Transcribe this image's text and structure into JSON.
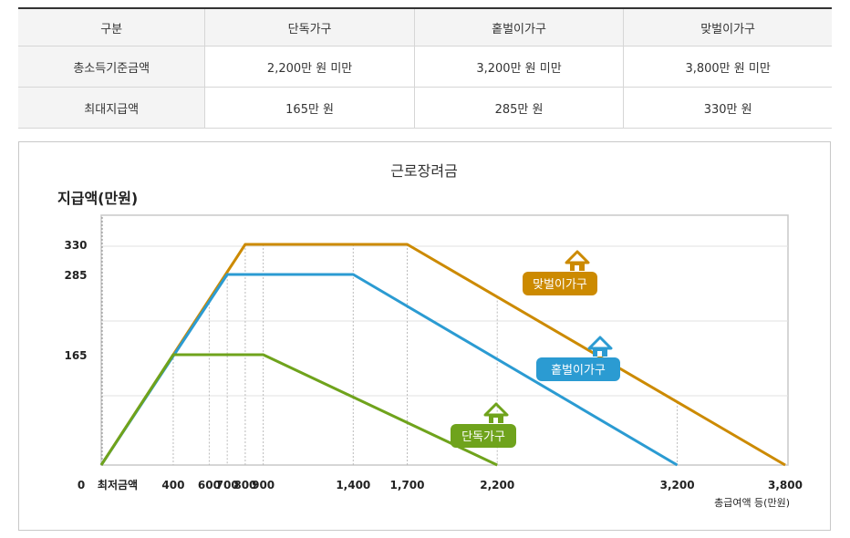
{
  "table": {
    "headers": [
      "구분",
      "단독가구",
      "홑벌이가구",
      "맞벌이가구"
    ],
    "rows": [
      {
        "label": "총소득기준금액",
        "values": [
          "2,200만 원 미만",
          "3,200만 원 미만",
          "3,800만 원 미만"
        ]
      },
      {
        "label": "최대지급액",
        "values": [
          "165만 원",
          "285만 원",
          "330만 원"
        ]
      }
    ]
  },
  "chart_data": {
    "type": "line",
    "title": "근로장려금",
    "ylabel": "지급액(만원)",
    "xlabel": "총급여액 등(만원)",
    "x_origin_label": "0",
    "x_min_label": "최저금액",
    "xlim": [
      0,
      3800
    ],
    "ylim": [
      0,
      330
    ],
    "x_ticks": [
      400,
      600,
      700,
      800,
      900,
      1400,
      1700,
      2200,
      3200,
      3800
    ],
    "x_tick_labels": [
      "400",
      "600",
      "700",
      "800",
      "900",
      "1,400",
      "1,700",
      "2,200",
      "3,200",
      "3,800"
    ],
    "y_ticks": [
      165,
      285,
      330
    ],
    "y_tick_labels": [
      "165",
      "285",
      "330"
    ],
    "grid": true,
    "series": [
      {
        "name": "맞벌이가구",
        "color": "#cc8a00",
        "icon": "house-icon",
        "points": [
          [
            0,
            0
          ],
          [
            800,
            330
          ],
          [
            1700,
            330
          ],
          [
            3800,
            0
          ]
        ]
      },
      {
        "name": "홑벌이가구",
        "color": "#2b9bd2",
        "icon": "house-icon",
        "points": [
          [
            0,
            0
          ],
          [
            700,
            285
          ],
          [
            1400,
            285
          ],
          [
            3200,
            0
          ]
        ]
      },
      {
        "name": "단독가구",
        "color": "#6fa31c",
        "icon": "house-icon",
        "points": [
          [
            0,
            0
          ],
          [
            400,
            165
          ],
          [
            900,
            165
          ],
          [
            2200,
            0
          ]
        ]
      }
    ]
  }
}
